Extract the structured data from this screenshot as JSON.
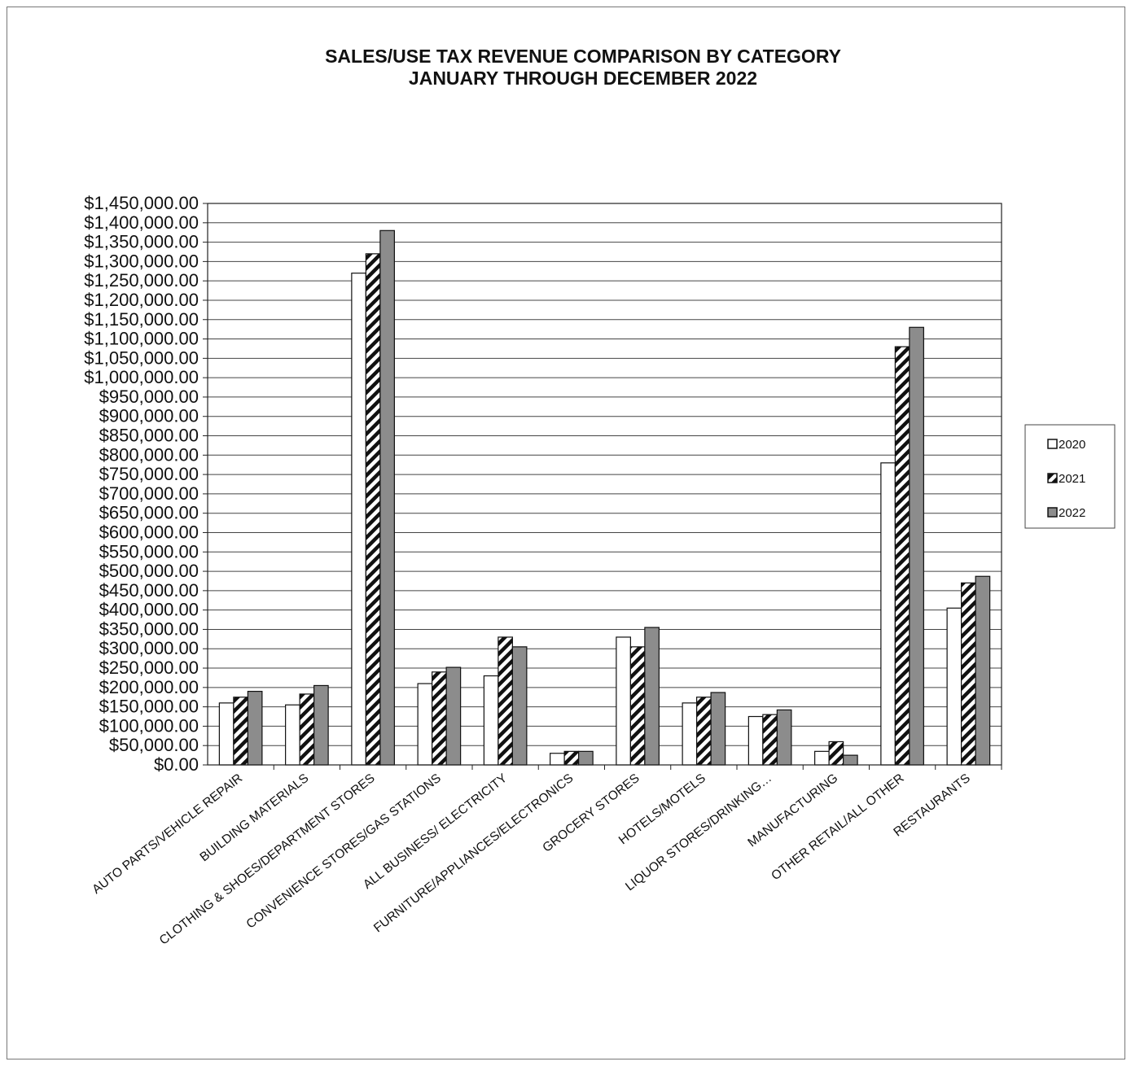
{
  "chart_data": {
    "type": "bar",
    "title": "SALES/USE TAX REVENUE COMPARISON BY CATEGORY",
    "subtitle": "JANUARY THROUGH DECEMBER 2022",
    "xlabel": "",
    "ylabel": "",
    "ylim": [
      0,
      1450000
    ],
    "ytick_step": 50000,
    "grid": true,
    "legend_position": "right",
    "categories": [
      "AUTO PARTS/VEHICLE REPAIR",
      "BUILDING MATERIALS",
      "CLOTHING & SHOES/DEPARTMENT STORES",
      "CONVENIENCE STORES/GAS STATIONS",
      "ALL BUSINESS/ ELECTRICITY",
      "FURNITURE/APPLIANCES/ELECTRONICS",
      "GROCERY STORES",
      "HOTELS/MOTELS",
      "LIQUOR STORES/DRINKING…",
      "MANUFACTURING",
      "OTHER RETAIL/ALL OTHER",
      "RESTAURANTS"
    ],
    "series": [
      {
        "name": "2020",
        "fill": "#ffffff",
        "pattern": "solid",
        "values": [
          160000,
          155000,
          1270000,
          210000,
          230000,
          30000,
          330000,
          160000,
          125000,
          35000,
          780000,
          405000
        ]
      },
      {
        "name": "2021",
        "fill": "#ffffff",
        "pattern": "diagonal-hatch",
        "values": [
          175000,
          183000,
          1320000,
          240000,
          330000,
          35000,
          305000,
          175000,
          130000,
          60000,
          1080000,
          470000
        ]
      },
      {
        "name": "2022",
        "fill": "#8c8c8c",
        "pattern": "solid",
        "values": [
          190000,
          205000,
          1380000,
          252000,
          305000,
          35000,
          355000,
          187000,
          142000,
          25000,
          1130000,
          487000
        ]
      }
    ]
  }
}
